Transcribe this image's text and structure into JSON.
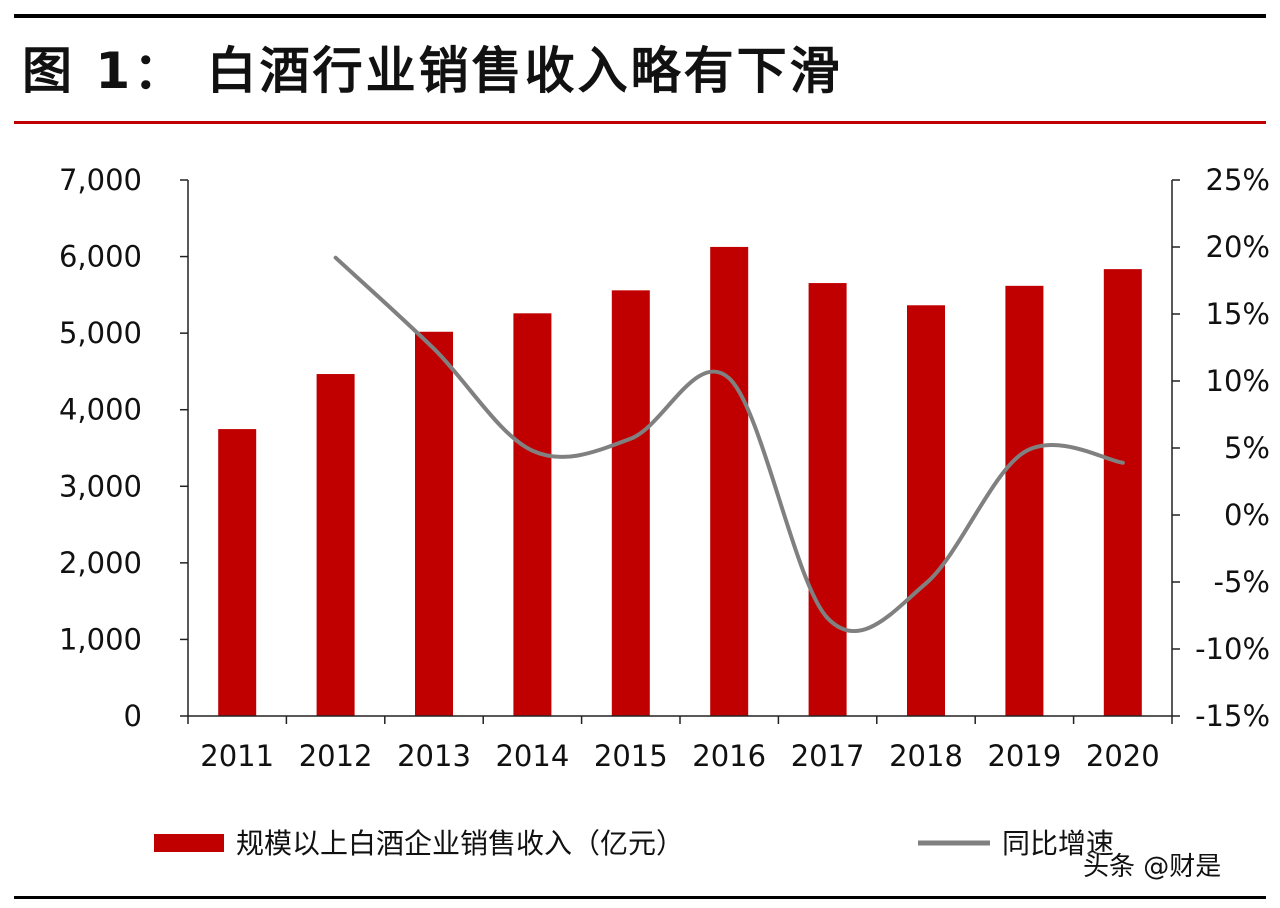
{
  "title": "图 1： 白酒行业销售收入略有下滑",
  "watermark": "头条 @财是",
  "colors": {
    "bar": "#c00000",
    "line": "#808080",
    "accent_rule": "#c00000"
  },
  "chart_data": {
    "type": "bar",
    "categories": [
      "2011",
      "2012",
      "2013",
      "2014",
      "2015",
      "2016",
      "2017",
      "2018",
      "2019",
      "2020"
    ],
    "series": [
      {
        "name": "规模以上白酒企业销售收入（亿元）",
        "type": "bar",
        "axis": "left",
        "values": [
          3747,
          4466,
          5018,
          5259,
          5559,
          6126,
          5654,
          5364,
          5618,
          5836
        ]
      },
      {
        "name": "同比增速",
        "type": "line",
        "axis": "right",
        "values": [
          null,
          19.2,
          12.4,
          4.8,
          5.7,
          10.2,
          -7.7,
          -5.1,
          4.7,
          3.9
        ]
      }
    ],
    "y_left": {
      "lim": [
        0,
        7000
      ],
      "ticks": [
        0,
        1000,
        2000,
        3000,
        4000,
        5000,
        6000,
        7000
      ],
      "tick_labels": [
        "0",
        "1,000",
        "2,000",
        "3,000",
        "4,000",
        "5,000",
        "6,000",
        "7,000"
      ]
    },
    "y_right": {
      "lim": [
        -15,
        25
      ],
      "ticks": [
        -15,
        -10,
        -5,
        0,
        5,
        10,
        15,
        20,
        25
      ],
      "tick_labels": [
        "-15%",
        "-10%",
        "-5%",
        "0%",
        "5%",
        "10%",
        "15%",
        "20%",
        "25%"
      ]
    },
    "xlabel": "",
    "ylabel": "",
    "grid": false,
    "legend": "bottom"
  }
}
